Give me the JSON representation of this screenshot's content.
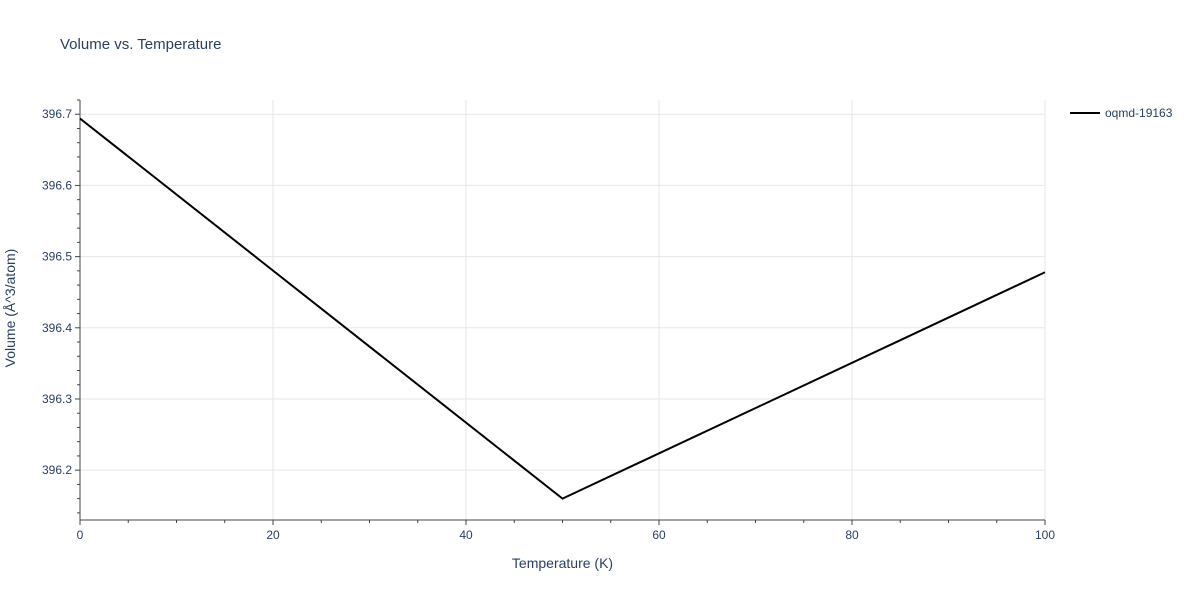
{
  "chart_data": {
    "type": "line",
    "title": "Volume vs. Temperature",
    "xlabel": "Temperature (K)",
    "ylabel": "Volume (Å^3/atom)",
    "xlim": [
      0,
      100
    ],
    "ylim": [
      396.13,
      396.72
    ],
    "xticks": [
      0,
      20,
      40,
      60,
      80,
      100
    ],
    "yticks": [
      396.2,
      396.3,
      396.4,
      396.5,
      396.6,
      396.7
    ],
    "grid": true,
    "legend_position": "top-right",
    "series": [
      {
        "name": "oqmd-19163",
        "color": "#000000",
        "x": [
          0,
          50,
          100
        ],
        "y": [
          396.694,
          396.16,
          396.478
        ]
      }
    ]
  }
}
